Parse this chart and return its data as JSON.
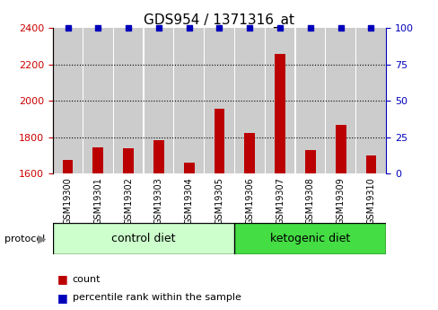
{
  "title": "GDS954 / 1371316_at",
  "samples": [
    "GSM19300",
    "GSM19301",
    "GSM19302",
    "GSM19303",
    "GSM19304",
    "GSM19305",
    "GSM19306",
    "GSM19307",
    "GSM19308",
    "GSM19309",
    "GSM19310"
  ],
  "bar_values": [
    1675,
    1745,
    1740,
    1785,
    1658,
    1958,
    1825,
    2255,
    1730,
    1865,
    1700
  ],
  "percentile_values": [
    100,
    100,
    100,
    100,
    100,
    100,
    100,
    100,
    100,
    100,
    100
  ],
  "bar_baseline": 1600,
  "ylim_left": [
    1600,
    2400
  ],
  "ylim_right": [
    0,
    100
  ],
  "yticks_left": [
    1600,
    1800,
    2000,
    2200,
    2400
  ],
  "yticks_right": [
    0,
    25,
    50,
    75,
    100
  ],
  "bar_color": "#bb0000",
  "dot_color": "#0000bb",
  "n_control": 6,
  "n_ketogenic": 5,
  "control_label": "control diet",
  "ketogenic_label": "ketogenic diet",
  "protocol_label": "protocol",
  "legend_count": "count",
  "legend_percentile": "percentile rank within the sample",
  "bg_color_control": "#ccffcc",
  "bg_color_ketogenic": "#44dd44",
  "col_bg_color": "#cccccc",
  "plot_bg_color": "#ffffff",
  "grid_color": "#000000",
  "left_tick_color": "#cc0000",
  "right_tick_color": "#0000bb",
  "title_fontsize": 11
}
